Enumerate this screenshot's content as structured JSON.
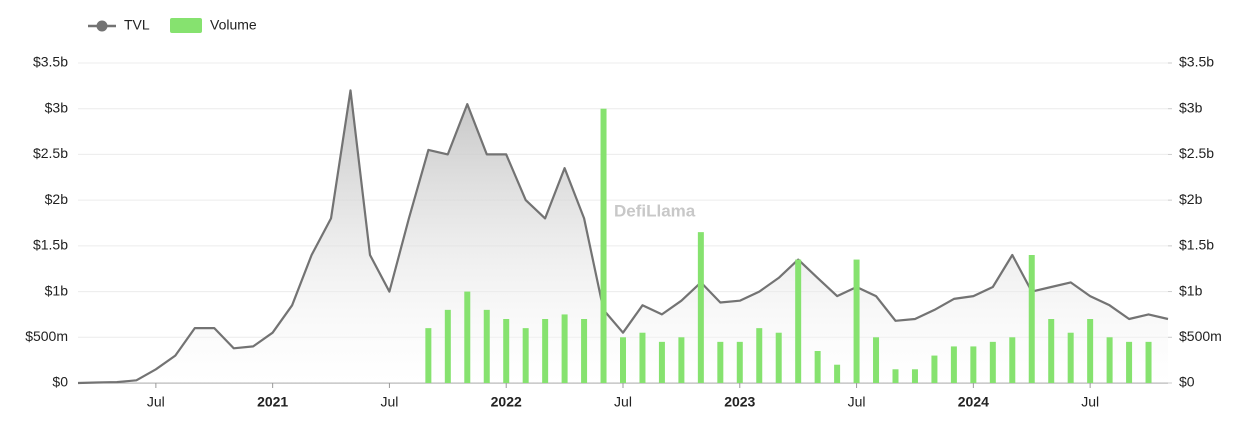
{
  "chart_data": {
    "type": "line-bar",
    "legend_position": "top-left",
    "grid": true,
    "watermark": "DefiLlama",
    "x": [
      "2020-03",
      "2020-04",
      "2020-05",
      "2020-06",
      "2020-07",
      "2020-08",
      "2020-09",
      "2020-10",
      "2020-11",
      "2020-12",
      "2021-01",
      "2021-02",
      "2021-03",
      "2021-04",
      "2021-05",
      "2021-06",
      "2021-07",
      "2021-08",
      "2021-09",
      "2021-10",
      "2021-11",
      "2021-12",
      "2022-01",
      "2022-02",
      "2022-03",
      "2022-04",
      "2022-05",
      "2022-06",
      "2022-07",
      "2022-08",
      "2022-09",
      "2022-10",
      "2022-11",
      "2022-12",
      "2023-01",
      "2023-02",
      "2023-03",
      "2023-04",
      "2023-05",
      "2023-06",
      "2023-07",
      "2023-08",
      "2023-09",
      "2023-10",
      "2023-11",
      "2023-12",
      "2024-01",
      "2024-02",
      "2024-03",
      "2024-04",
      "2024-05",
      "2024-06",
      "2024-07",
      "2024-08",
      "2024-09",
      "2024-10",
      "2024-11"
    ],
    "xlim": [
      "2020-03",
      "2024-11"
    ],
    "xticks": [
      {
        "value": "2020-07",
        "label": "Jul"
      },
      {
        "value": "2021-01",
        "label": "2021"
      },
      {
        "value": "2021-07",
        "label": "Jul"
      },
      {
        "value": "2022-01",
        "label": "2022"
      },
      {
        "value": "2022-07",
        "label": "Jul"
      },
      {
        "value": "2023-01",
        "label": "2023"
      },
      {
        "value": "2023-07",
        "label": "Jul"
      },
      {
        "value": "2024-01",
        "label": "2024"
      },
      {
        "value": "2024-07",
        "label": "Jul"
      }
    ],
    "ylim": [
      0,
      3500000000.0
    ],
    "yticks": [
      {
        "value": 0,
        "label": "$0"
      },
      {
        "value": 500000000.0,
        "label": "$500m"
      },
      {
        "value": 1000000000.0,
        "label": "$1b"
      },
      {
        "value": 1500000000.0,
        "label": "$1.5b"
      },
      {
        "value": 2000000000.0,
        "label": "$2b"
      },
      {
        "value": 2500000000.0,
        "label": "$2.5b"
      },
      {
        "value": 3000000000.0,
        "label": "$3b"
      },
      {
        "value": 3500000000.0,
        "label": "$3.5b"
      }
    ],
    "y2lim": [
      0,
      3500000000.0
    ],
    "y2ticks": [
      {
        "value": 0,
        "label": "$0"
      },
      {
        "value": 500000000.0,
        "label": "$500m"
      },
      {
        "value": 1000000000.0,
        "label": "$1b"
      },
      {
        "value": 1500000000.0,
        "label": "$1.5b"
      },
      {
        "value": 2000000000.0,
        "label": "$2b"
      },
      {
        "value": 2500000000.0,
        "label": "$2.5b"
      },
      {
        "value": 3000000000.0,
        "label": "$3b"
      },
      {
        "value": 3500000000.0,
        "label": "$3.5b"
      }
    ],
    "series": [
      {
        "name": "TVL",
        "color": "#737373",
        "values": [
          0,
          5000000.0,
          10000000.0,
          30000000.0,
          150000000.0,
          300000000.0,
          600000000.0,
          600000000.0,
          380000000.0,
          400000000.0,
          550000000.0,
          850000000.0,
          1400000000.0,
          1800000000.0,
          3200000000.0,
          1400000000.0,
          1000000000.0,
          1800000000.0,
          2550000000.0,
          2500000000.0,
          3050000000.0,
          2500000000.0,
          2500000000.0,
          2000000000.0,
          1800000000.0,
          2350000000.0,
          1800000000.0,
          800000000.0,
          550000000.0,
          850000000.0,
          750000000.0,
          900000000.0,
          1100000000.0,
          880000000.0,
          900000000.0,
          1000000000.0,
          1150000000.0,
          1350000000.0,
          1150000000.0,
          950000000.0,
          1050000000.0,
          950000000.0,
          680000000.0,
          700000000.0,
          800000000.0,
          920000000.0,
          950000000.0,
          1050000000.0,
          1400000000.0,
          1000000000.0,
          1050000000.0,
          1100000000.0,
          950000000.0,
          850000000.0,
          700000000.0,
          750000000.0,
          700000000.0
        ]
      },
      {
        "name": "Volume",
        "color": "#86e26f",
        "axis": "y2",
        "values": [
          null,
          null,
          null,
          null,
          null,
          null,
          null,
          null,
          null,
          null,
          null,
          null,
          null,
          null,
          null,
          null,
          null,
          null,
          600000000.0,
          800000000.0,
          1000000000.0,
          800000000.0,
          700000000.0,
          600000000.0,
          700000000.0,
          750000000.0,
          700000000.0,
          3000000000.0,
          500000000.0,
          550000000.0,
          450000000.0,
          500000000.0,
          1650000000.0,
          450000000.0,
          450000000.0,
          600000000.0,
          550000000.0,
          1350000000.0,
          350000000.0,
          200000000.0,
          1350000000.0,
          500000000.0,
          150000000.0,
          150000000.0,
          300000000.0,
          400000000.0,
          400000000.0,
          450000000.0,
          500000000.0,
          1400000000.0,
          700000000.0,
          550000000.0,
          700000000.0,
          500000000.0,
          450000000.0,
          450000000.0,
          null
        ]
      }
    ]
  }
}
